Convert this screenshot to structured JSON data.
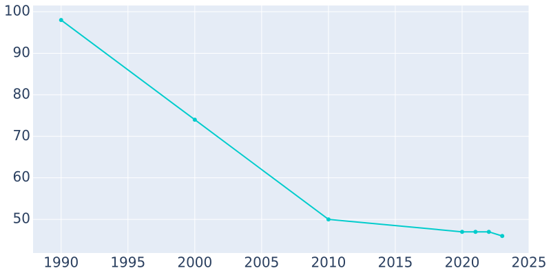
{
  "chart_data": {
    "type": "line",
    "x": [
      1990,
      2000,
      2010,
      2020,
      2021,
      2022,
      2023
    ],
    "series": [
      {
        "color": "#00cccc",
        "values": [
          98,
          74,
          50,
          47,
          47,
          47,
          46
        ]
      }
    ],
    "xlim": [
      1987.9,
      2025
    ],
    "xticks": [
      1990,
      1995,
      2000,
      2005,
      2010,
      2015,
      2020,
      2025
    ],
    "ylim": [
      41.9,
      101.5
    ],
    "yticks": [
      50,
      60,
      70,
      80,
      90,
      100
    ],
    "grid": true
  }
}
